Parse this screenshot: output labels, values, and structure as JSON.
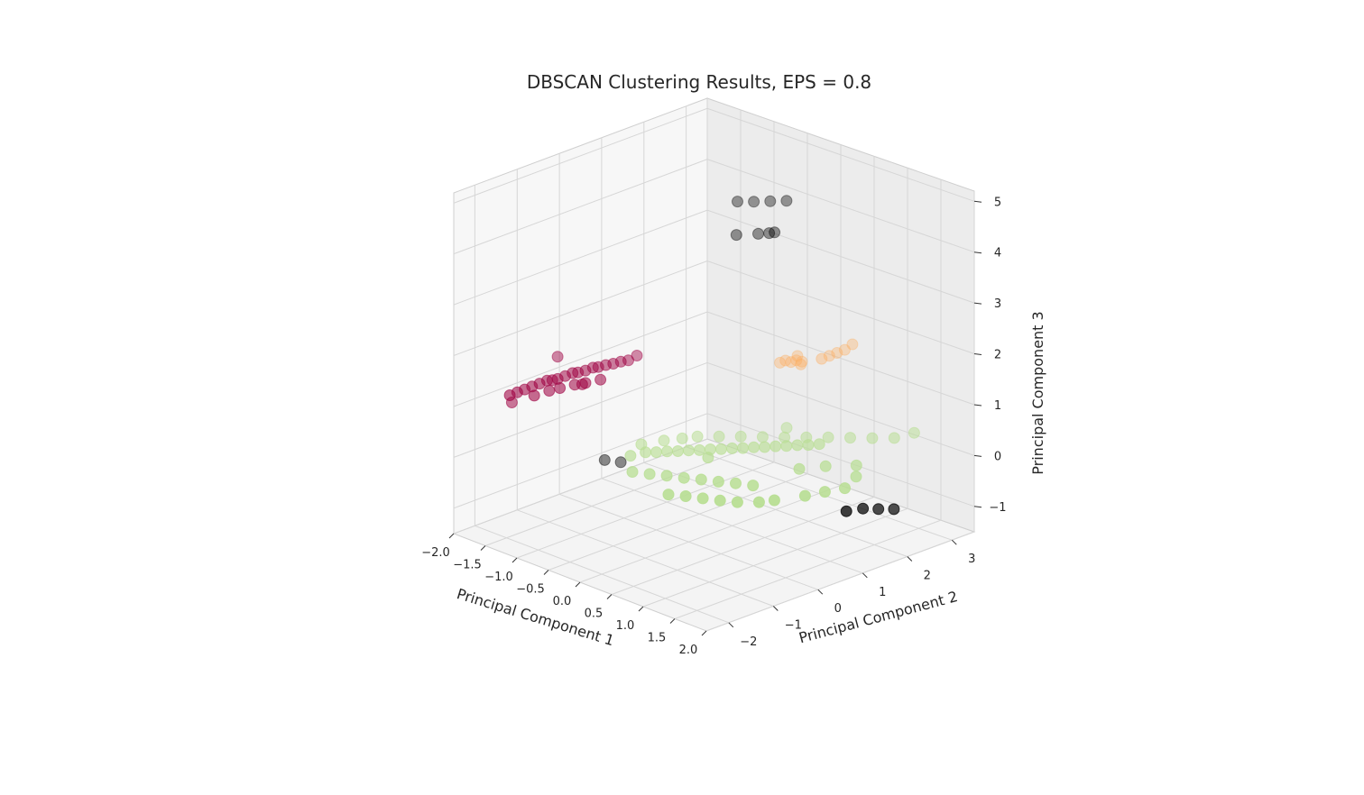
{
  "chart_data": {
    "type": "scatter",
    "projection": "3d",
    "title": "DBSCAN Clustering Results, EPS = 0.8",
    "xlabel": "Principal Component 1",
    "ylabel": "Principal Component 2",
    "zlabel": "Principal Component 3",
    "xlim": [
      -2.0,
      2.0
    ],
    "ylim": [
      -2.5,
      3.5
    ],
    "zlim": [
      -1.5,
      5.2
    ],
    "x_ticks": [
      "−2.0",
      "−1.5",
      "−1.0",
      "−0.5",
      "0.0",
      "0.5",
      "1.0",
      "1.5",
      "2.0"
    ],
    "y_ticks": [
      "−2",
      "−1",
      "0",
      "1",
      "2",
      "3"
    ],
    "z_ticks": [
      "−1",
      "0",
      "1",
      "2",
      "3",
      "4",
      "5"
    ],
    "grid": true,
    "legend": "none",
    "series": [
      {
        "color": "#9e0142",
        "points": [
          [
            -1.85,
            -1.4,
            0.95
          ],
          [
            -1.8,
            -1.3,
            1.0
          ],
          [
            -1.75,
            -1.2,
            1.05
          ],
          [
            -1.7,
            -1.1,
            1.1
          ],
          [
            -1.65,
            -1.0,
            1.15
          ],
          [
            -1.6,
            -0.9,
            1.2
          ],
          [
            -1.55,
            -0.85,
            1.22
          ],
          [
            -1.5,
            -0.8,
            1.25
          ],
          [
            -1.45,
            -0.7,
            1.3
          ],
          [
            -1.4,
            -0.6,
            1.35
          ],
          [
            -1.35,
            -0.55,
            1.37
          ],
          [
            -1.3,
            -0.45,
            1.4
          ],
          [
            -1.25,
            -0.35,
            1.45
          ],
          [
            -1.2,
            -0.3,
            1.47
          ],
          [
            -1.15,
            -0.2,
            1.5
          ],
          [
            -1.1,
            -0.1,
            1.52
          ],
          [
            -1.05,
            0.0,
            1.55
          ],
          [
            -1.0,
            0.1,
            1.57
          ],
          [
            -1.6,
            -1.2,
            1.0
          ],
          [
            -1.5,
            -1.0,
            1.08
          ],
          [
            -1.4,
            -0.9,
            1.15
          ],
          [
            -1.3,
            -0.7,
            1.2
          ],
          [
            -1.2,
            -0.6,
            1.25
          ],
          [
            -1.1,
            -0.4,
            1.3
          ],
          [
            -1.95,
            -1.2,
            0.7
          ],
          [
            -1.7,
            -0.5,
            1.5
          ],
          [
            -1.0,
            0.3,
            1.6
          ],
          [
            -1.25,
            -0.6,
            1.2
          ]
        ]
      },
      {
        "color": "#fdae61",
        "points": [
          [
            0.1,
            1.95,
            1.45
          ],
          [
            0.15,
            2.0,
            1.5
          ],
          [
            0.2,
            2.05,
            1.48
          ],
          [
            0.25,
            2.1,
            1.52
          ],
          [
            0.3,
            2.15,
            1.5
          ],
          [
            0.2,
            2.2,
            1.55
          ],
          [
            0.5,
            2.3,
            1.6
          ],
          [
            0.55,
            2.4,
            1.65
          ],
          [
            0.6,
            2.5,
            1.7
          ],
          [
            0.7,
            2.7,
            1.85
          ],
          [
            0.65,
            2.6,
            1.75
          ],
          [
            0.35,
            2.05,
            1.5
          ]
        ]
      },
      {
        "color": "#b8de93",
        "points": [
          [
            -0.5,
            -0.6,
            0.15
          ],
          [
            -0.4,
            -0.4,
            0.2
          ],
          [
            -0.3,
            -0.3,
            0.22
          ],
          [
            -0.2,
            -0.2,
            0.25
          ],
          [
            -0.1,
            -0.1,
            0.27
          ],
          [
            0.0,
            0.0,
            0.3
          ],
          [
            0.1,
            0.1,
            0.32
          ],
          [
            0.2,
            0.2,
            0.35
          ],
          [
            0.3,
            0.3,
            0.37
          ],
          [
            0.4,
            0.4,
            0.4
          ],
          [
            0.5,
            0.5,
            0.42
          ],
          [
            0.6,
            0.6,
            0.45
          ],
          [
            0.7,
            0.7,
            0.47
          ],
          [
            0.8,
            0.8,
            0.5
          ],
          [
            0.9,
            0.9,
            0.52
          ],
          [
            1.0,
            1.0,
            0.55
          ],
          [
            1.1,
            1.1,
            0.57
          ],
          [
            1.2,
            1.2,
            0.6
          ],
          [
            -0.3,
            0.3,
            0.3
          ],
          [
            -0.2,
            0.5,
            0.32
          ],
          [
            0.0,
            0.7,
            0.35
          ],
          [
            0.2,
            0.9,
            0.38
          ],
          [
            0.4,
            1.1,
            0.4
          ],
          [
            0.6,
            1.3,
            0.42
          ],
          [
            0.8,
            1.5,
            0.45
          ],
          [
            1.0,
            1.7,
            0.48
          ],
          [
            1.2,
            1.9,
            0.5
          ],
          [
            1.4,
            2.1,
            0.52
          ],
          [
            1.6,
            2.3,
            0.55
          ],
          [
            1.7,
            2.6,
            0.6
          ],
          [
            -0.2,
            -1.0,
            0.1
          ],
          [
            0.0,
            -0.9,
            0.12
          ],
          [
            0.2,
            -0.8,
            0.15
          ],
          [
            0.4,
            -0.7,
            0.17
          ],
          [
            0.6,
            -0.6,
            0.2
          ],
          [
            0.8,
            -0.5,
            0.22
          ],
          [
            1.0,
            -0.4,
            0.25
          ],
          [
            1.2,
            -0.3,
            0.27
          ],
          [
            0.5,
            -1.2,
            0.05
          ],
          [
            0.7,
            -1.1,
            0.08
          ],
          [
            0.9,
            -1.0,
            0.1
          ],
          [
            1.1,
            -0.9,
            0.12
          ],
          [
            1.3,
            -0.8,
            0.15
          ],
          [
            1.5,
            -0.6,
            0.18
          ],
          [
            1.6,
            -0.4,
            0.2
          ],
          [
            1.8,
            0.0,
            0.25
          ],
          [
            1.9,
            0.3,
            0.28
          ],
          [
            2.0,
            0.6,
            0.3
          ],
          [
            1.9,
            1.0,
            0.35
          ],
          [
            1.7,
            1.3,
            0.38
          ],
          [
            1.3,
            0.6,
            0.35
          ],
          [
            1.5,
            0.9,
            0.4
          ],
          [
            -0.6,
            -0.2,
            0.2
          ],
          [
            -0.45,
            0.1,
            0.25
          ],
          [
            0.3,
            0.0,
            0.3
          ],
          [
            0.5,
            1.5,
            0.5
          ]
        ]
      },
      {
        "color": "#000000",
        "points": [
          [
            -0.25,
            1.5,
            4.6
          ],
          [
            -0.1,
            1.65,
            4.62
          ],
          [
            0.05,
            1.8,
            4.65
          ],
          [
            0.2,
            1.95,
            4.68
          ],
          [
            -0.2,
            1.4,
            4.0
          ],
          [
            0.0,
            1.6,
            4.05
          ],
          [
            0.1,
            1.7,
            4.08
          ],
          [
            0.15,
            1.75,
            4.1
          ],
          [
            -1.3,
            0.0,
            -0.5
          ],
          [
            -1.15,
            0.15,
            -0.52
          ],
          [
            1.75,
            1.0,
            -0.4
          ],
          [
            1.8,
            1.3,
            -0.42
          ],
          [
            1.9,
            1.5,
            -0.45
          ],
          [
            2.0,
            1.7,
            -0.47
          ]
        ]
      }
    ]
  }
}
